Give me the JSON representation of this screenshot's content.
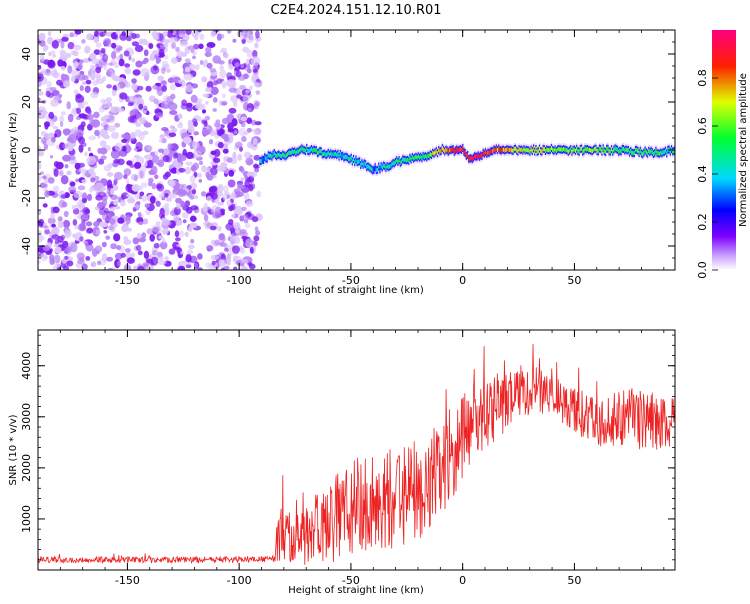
{
  "figure": {
    "title": "C2E4.2024.151.12.10.R01"
  },
  "chart_data": [
    {
      "type": "heatmap",
      "xlabel": "Height of straight line (km)",
      "ylabel": "Frequency (Hz)",
      "xlim": [
        -190,
        95
      ],
      "ylim": [
        -50,
        50
      ],
      "x_ticks": [
        -150,
        -100,
        -50,
        0,
        50
      ],
      "y_ticks": [
        -40,
        -20,
        0,
        20,
        40
      ],
      "noise_region": {
        "x_range": [
          -190,
          -91
        ],
        "y_range": [
          -50,
          50
        ]
      },
      "signal_track": {
        "x": [
          -91,
          -88,
          -85,
          -80,
          -75,
          -72,
          -70,
          -65,
          -60,
          -55,
          -50,
          -45,
          -40,
          -35,
          -30,
          -25,
          -20,
          -15,
          -10,
          -5,
          0,
          2,
          5,
          10,
          15,
          20,
          30,
          40,
          50,
          60,
          70,
          80,
          90,
          95
        ],
        "freq": [
          -4,
          -3,
          -2,
          -2,
          -1,
          1,
          0,
          -1,
          -2,
          -2,
          -4,
          -6,
          -8,
          -7,
          -5,
          -4,
          -3,
          -2,
          0,
          0,
          0,
          -3,
          -3,
          -1,
          0,
          0,
          0,
          0,
          0,
          0,
          0,
          -1,
          -1,
          0
        ],
        "amplitude": [
          0.35,
          0.35,
          0.45,
          0.5,
          0.5,
          0.55,
          0.45,
          0.5,
          0.45,
          0.4,
          0.45,
          0.4,
          0.35,
          0.4,
          0.45,
          0.5,
          0.55,
          0.6,
          0.75,
          0.85,
          0.9,
          0.9,
          0.95,
          0.9,
          0.8,
          0.75,
          0.7,
          0.65,
          0.6,
          0.6,
          0.55,
          0.55,
          0.5,
          0.5
        ]
      },
      "colorbar": {
        "label": "Normalized spectral amplitude",
        "range": [
          0.0,
          1.0
        ],
        "ticks": [
          0.0,
          0.2,
          0.4,
          0.6,
          0.8
        ],
        "colormap": [
          "#ffffff",
          "#7f00ff",
          "#0000ff",
          "#00ffff",
          "#00ff00",
          "#ffff00",
          "#ff0000",
          "#ff0080"
        ]
      }
    },
    {
      "type": "line",
      "xlabel": "Height of straight line (km)",
      "ylabel": "SNR (10 * v/v)",
      "xlim": [
        -190,
        95
      ],
      "ylim": [
        0,
        4700
      ],
      "x_ticks": [
        -150,
        -100,
        -50,
        0,
        50
      ],
      "y_ticks": [
        1000,
        2000,
        3000,
        4000
      ],
      "series": [
        {
          "color": "#ee2222",
          "envelope": {
            "x": [
              -190,
              -150,
              -100,
              -84,
              -83,
              -70,
              -60,
              -50,
              -40,
              -30,
              -20,
              -10,
              0,
              5,
              10,
              20,
              30,
              40,
              50,
              60,
              70,
              80,
              90,
              95
            ],
            "mean": [
              200,
              200,
              200,
              220,
              700,
              800,
              900,
              1200,
              1300,
              1400,
              1500,
              1900,
              2600,
              2900,
              3000,
              3300,
              3550,
              3400,
              3150,
              2850,
              3000,
              2950,
              2900,
              2850
            ],
            "spread": [
              60,
              60,
              60,
              60,
              600,
              700,
              800,
              1000,
              1000,
              1000,
              950,
              900,
              850,
              700,
              650,
              600,
              500,
              400,
              450,
              500,
              550,
              600,
              550,
              500
            ]
          }
        }
      ]
    }
  ]
}
